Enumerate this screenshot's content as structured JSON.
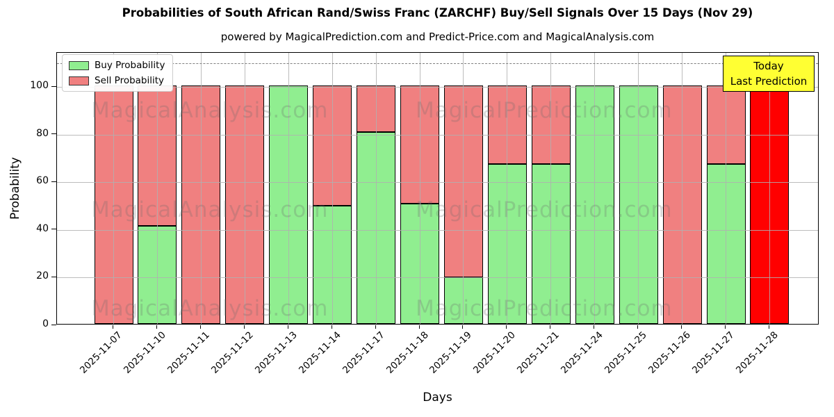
{
  "title": "Probabilities of South African Rand/Swiss Franc (ZARCHF) Buy/Sell Signals Over 15 Days (Nov 29)",
  "subtitle": "powered by MagicalPrediction.com and Predict-Price.com and MagicalAnalysis.com",
  "axes": {
    "xlabel": "Days",
    "ylabel": "Probability"
  },
  "legend": {
    "items": [
      {
        "label": "Buy Probability",
        "color": "#90ee90"
      },
      {
        "label": "Sell Probability",
        "color": "#f08080"
      }
    ]
  },
  "annotation": {
    "line1": "Today",
    "line2": "Last Prediction",
    "bg": "#ffff33"
  },
  "watermarks": {
    "left": "MagicalAnalysis.com",
    "right": "MagicalPrediction.com"
  },
  "chart_data": {
    "type": "bar",
    "stacked": true,
    "title": "Probabilities of South African Rand/Swiss Franc (ZARCHF) Buy/Sell Signals Over 15 Days (Nov 29)",
    "xlabel": "Days",
    "ylabel": "Probability",
    "categories": [
      "2025-11-07",
      "2025-11-10",
      "2025-11-11",
      "2025-11-12",
      "2025-11-13",
      "2025-11-14",
      "2025-11-17",
      "2025-11-18",
      "2025-11-19",
      "2025-11-20",
      "2025-11-21",
      "2025-11-24",
      "2025-11-25",
      "2025-11-26",
      "2025-11-27",
      "2025-11-28"
    ],
    "series": [
      {
        "name": "Buy Probability",
        "color": "#90ee90",
        "values": [
          0,
          41,
          0,
          0,
          100,
          49.6,
          80.6,
          50.4,
          19.5,
          67,
          67,
          100,
          100,
          0,
          67,
          0
        ]
      },
      {
        "name": "Sell Probability",
        "color": "#f08080",
        "values": [
          100,
          59,
          100,
          100,
          0,
          50.4,
          19.4,
          49.6,
          80.5,
          33,
          33,
          0,
          0,
          100,
          33,
          100
        ]
      }
    ],
    "highlight": {
      "category": "2025-11-28",
      "index": 15,
      "series": "Sell Probability",
      "color": "#ff0000",
      "note": "Today / Last Prediction"
    },
    "yticks": [
      0,
      20,
      40,
      60,
      80,
      100
    ],
    "ylim": [
      0,
      114.3
    ],
    "dashed_hline": 110,
    "grid": true,
    "legend_position": "upper left",
    "bar_edge_color": "#000000"
  }
}
